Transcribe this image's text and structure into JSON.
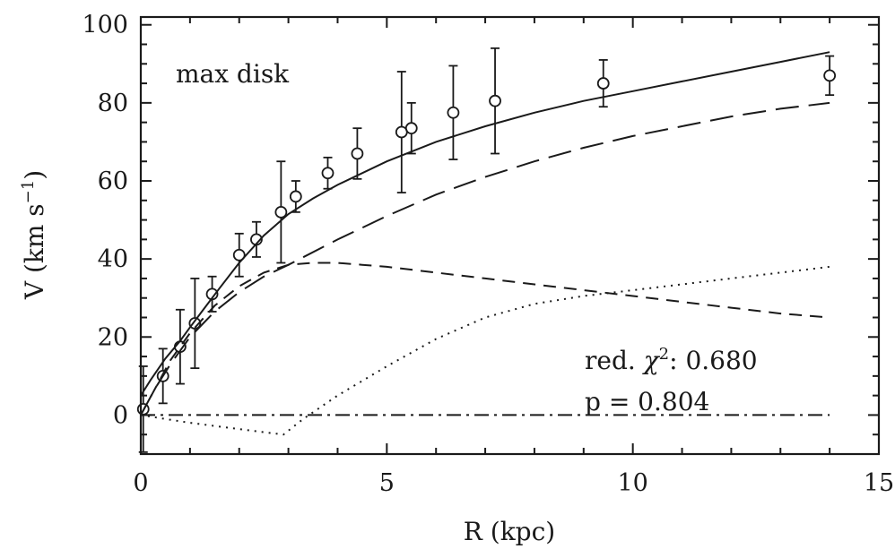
{
  "chart_data": {
    "type": "scatter",
    "xlabel": "R (kpc)",
    "ylabel_main": "V (km s",
    "ylabel_sup": "−1",
    "ylabel_close": ")",
    "xlim": [
      0,
      15
    ],
    "ylim": [
      -10,
      102
    ],
    "x_ticks": [
      0,
      5,
      10,
      15
    ],
    "x_tick_labels": [
      "0",
      "5",
      "10",
      "15"
    ],
    "y_ticks": [
      0,
      20,
      40,
      60,
      80,
      100
    ],
    "y_tick_labels": [
      "0",
      "20",
      "40",
      "60",
      "80",
      "100"
    ],
    "x_minor_step": 1,
    "y_minor_step": 5,
    "grid": false,
    "annotation_model": "max disk",
    "annotation_chi_prefix": "red. ",
    "annotation_chi_symbol": "χ",
    "annotation_chi_sup": "2",
    "annotation_chi_value": ": 0.680",
    "annotation_p": "p = 0.804",
    "observations": {
      "marker": "open-circle",
      "x": [
        0.05,
        0.45,
        0.8,
        1.1,
        1.45,
        2.0,
        2.35,
        2.85,
        3.15,
        3.8,
        4.4,
        5.3,
        5.5,
        6.35,
        7.2,
        9.4,
        14.0
      ],
      "y": [
        1.5,
        10,
        17.5,
        23.5,
        31,
        41,
        45,
        52,
        56,
        62,
        67,
        72.5,
        73.5,
        77.5,
        80.5,
        85,
        87
      ],
      "err": [
        11,
        7,
        9.5,
        11.5,
        4.5,
        5.5,
        4.5,
        13,
        4,
        4,
        6.5,
        15.5,
        6.5,
        12,
        13.5,
        6,
        5
      ]
    },
    "series": [
      {
        "style": "solid",
        "x": [
          0,
          0.2,
          0.5,
          0.8,
          1.0,
          1.3,
          1.6,
          2.0,
          2.5,
          3.0,
          3.5,
          4.0,
          5.0,
          6.0,
          7.0,
          8.0,
          9.0,
          10.0,
          11.0,
          12.0,
          13.0,
          14.0
        ],
        "y": [
          5,
          9,
          14.5,
          19,
          22.5,
          27.5,
          32.5,
          39,
          46,
          51.5,
          55.5,
          59,
          65,
          70,
          74,
          77.5,
          80.5,
          83,
          85.5,
          88,
          90.5,
          93
        ]
      },
      {
        "style": "long-dash",
        "x": [
          0,
          0.3,
          0.6,
          1.0,
          1.5,
          2.0,
          2.5,
          3.0,
          4.0,
          5.0,
          6.0,
          7.0,
          8.0,
          9.0,
          10.0,
          11.0,
          12.0,
          13.0,
          14.0
        ],
        "y": [
          0,
          7,
          13,
          20,
          26.5,
          31.5,
          35.5,
          38.5,
          45,
          51,
          56.5,
          61,
          65,
          68.5,
          71.5,
          74,
          76.5,
          78.5,
          80
        ]
      },
      {
        "style": "short-dash",
        "x": [
          0,
          0.3,
          0.6,
          1.0,
          1.5,
          2.0,
          2.5,
          3.0,
          3.5,
          4.0,
          4.5,
          5.0,
          6.0,
          7.0,
          8.0,
          9.0,
          10.0,
          11.0,
          12.0,
          13.0,
          14.0
        ],
        "y": [
          0,
          7,
          14,
          21,
          28,
          33,
          36.5,
          38.5,
          39,
          39,
          38.5,
          38,
          36.5,
          35,
          33.5,
          32,
          30.5,
          29,
          27.5,
          26,
          25
        ]
      },
      {
        "style": "dotted",
        "x": [
          0,
          0.5,
          1.0,
          1.5,
          2.0,
          2.5,
          2.9,
          3.3,
          4.0,
          5.0,
          6.0,
          7.0,
          8.0,
          9.0,
          10.0,
          11.0,
          12.0,
          13.0,
          14.0
        ],
        "y": [
          0,
          -1,
          -2,
          -2.8,
          -3.6,
          -4.4,
          -5,
          -1,
          5,
          12.5,
          19.5,
          25,
          28.5,
          30.5,
          32,
          33.5,
          35,
          36.5,
          38
        ]
      },
      {
        "style": "dash-dot",
        "x": [
          0,
          14.0
        ],
        "y": [
          0,
          0
        ]
      }
    ]
  }
}
